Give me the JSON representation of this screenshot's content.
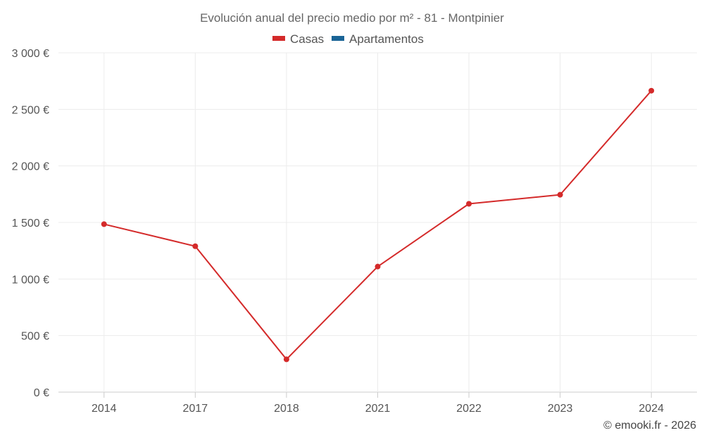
{
  "chart_data": {
    "type": "line",
    "title": "Evolución anual del precio medio por m² - 81 - Montpinier",
    "categories": [
      "2014",
      "2017",
      "2018",
      "2021",
      "2022",
      "2023",
      "2024"
    ],
    "series": [
      {
        "name": "Casas",
        "color": "#d42a2a",
        "values": [
          1485,
          1290,
          290,
          1110,
          1665,
          1745,
          2665
        ]
      },
      {
        "name": "Apartamentos",
        "color": "#1a6496",
        "values": [
          null,
          null,
          null,
          null,
          null,
          null,
          null
        ]
      }
    ],
    "ylim": [
      0,
      3000
    ],
    "yticks": [
      0,
      500,
      1000,
      1500,
      2000,
      2500,
      3000
    ],
    "ytick_labels": [
      "0 €",
      "500 €",
      "1 000 €",
      "1 500 €",
      "2 000 €",
      "2 500 €",
      "3 000 €"
    ],
    "xlabel": "",
    "ylabel": "",
    "grid": true,
    "legend_position": "top-center"
  },
  "credit": "© emooki.fr - 2026"
}
